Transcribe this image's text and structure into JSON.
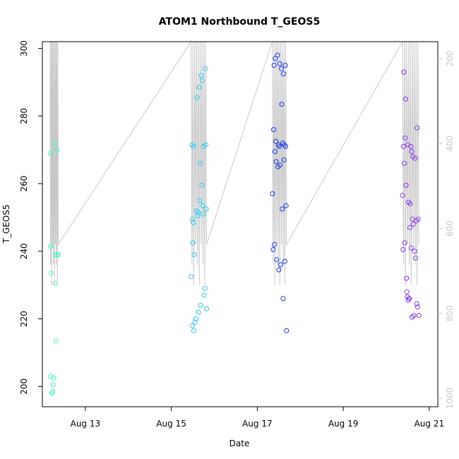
{
  "chart_data": {
    "type": "scatter",
    "title": "ATOM1 Northbound T_GEOS5",
    "xlabel": "Date",
    "ylabel": "T_GEOS5",
    "x_unit": "days in August",
    "xlim": [
      12.0,
      21.2
    ],
    "ylim": [
      194,
      302
    ],
    "x_ticks": [
      13,
      15,
      17,
      19,
      21
    ],
    "x_tick_labels": [
      "Aug 13",
      "Aug 15",
      "Aug 17",
      "Aug 19",
      "Aug 21"
    ],
    "y_ticks": [
      200,
      220,
      240,
      260,
      280,
      300
    ],
    "y_tick_labels": [
      "200",
      "220",
      "240",
      "260",
      "280",
      "300"
    ],
    "right_axis": {
      "ticks": [
        200,
        400,
        600,
        800,
        1000
      ],
      "tick_labels": [
        "200",
        "400",
        "600",
        "800",
        "1000"
      ],
      "range_top": 160,
      "range_bottom": 1020,
      "color": "#c8c8c8"
    },
    "grid": false,
    "legend": "none",
    "profile_color": "#c8c8c8",
    "series": [
      {
        "color": "#33ffcc",
        "points": [
          [
            12.18,
            269
          ],
          [
            12.19,
            241.5
          ],
          [
            12.2,
            233.5
          ],
          [
            12.19,
            203
          ],
          [
            12.22,
            198
          ],
          [
            12.24,
            198.5
          ],
          [
            12.25,
            200.5
          ],
          [
            12.26,
            202.5
          ],
          [
            12.28,
            272
          ],
          [
            12.3,
            239
          ],
          [
            12.3,
            230.5
          ],
          [
            12.33,
            270
          ],
          [
            12.31,
            213.5
          ],
          [
            12.34,
            239
          ],
          [
            12.37,
            239
          ]
        ]
      },
      {
        "color": "#22ccff",
        "points": [
          [
            15.46,
            232.5
          ],
          [
            15.48,
            271.5
          ],
          [
            15.49,
            249.5
          ],
          [
            15.5,
            242.5
          ],
          [
            15.51,
            248.5
          ],
          [
            15.52,
            271
          ],
          [
            15.49,
            218
          ],
          [
            15.52,
            216.5
          ],
          [
            15.53,
            239
          ],
          [
            15.55,
            219
          ],
          [
            15.57,
            220
          ],
          [
            15.58,
            252
          ],
          [
            15.6,
            285.5
          ],
          [
            15.61,
            250.5
          ],
          [
            15.62,
            251.5
          ],
          [
            15.63,
            222
          ],
          [
            15.65,
            288.5
          ],
          [
            15.66,
            255
          ],
          [
            15.67,
            266
          ],
          [
            15.68,
            224
          ],
          [
            15.7,
            292
          ],
          [
            15.71,
            259.5
          ],
          [
            15.72,
            290.5
          ],
          [
            15.73,
            253.5
          ],
          [
            15.74,
            251
          ],
          [
            15.75,
            271
          ],
          [
            15.76,
            227
          ],
          [
            15.78,
            229
          ],
          [
            15.79,
            294
          ],
          [
            15.8,
            271.5
          ],
          [
            15.81,
            252.5
          ],
          [
            15.82,
            223
          ]
        ]
      },
      {
        "color": "#1133ff",
        "points": [
          [
            17.35,
            257
          ],
          [
            17.37,
            240.5
          ],
          [
            17.38,
            276
          ],
          [
            17.39,
            295
          ],
          [
            17.4,
            242
          ],
          [
            17.41,
            269.5
          ],
          [
            17.42,
            297
          ],
          [
            17.43,
            272.5
          ],
          [
            17.44,
            266.5
          ],
          [
            17.45,
            237.5
          ],
          [
            17.47,
            298
          ],
          [
            17.48,
            265
          ],
          [
            17.49,
            271.5
          ],
          [
            17.5,
            234.5
          ],
          [
            17.51,
            271
          ],
          [
            17.52,
            295.5
          ],
          [
            17.53,
            265.5
          ],
          [
            17.54,
            236
          ],
          [
            17.56,
            294
          ],
          [
            17.57,
            283.5
          ],
          [
            17.58,
            252.5
          ],
          [
            17.59,
            272
          ],
          [
            17.6,
            226
          ],
          [
            17.61,
            292.5
          ],
          [
            17.62,
            267
          ],
          [
            17.63,
            271.5
          ],
          [
            17.64,
            237
          ],
          [
            17.65,
            295
          ],
          [
            17.66,
            271
          ],
          [
            17.67,
            253.5
          ],
          [
            17.68,
            216.5
          ]
        ]
      },
      {
        "color": "#8833ff",
        "points": [
          [
            20.38,
            256.5
          ],
          [
            20.39,
            240.5
          ],
          [
            20.4,
            271
          ],
          [
            20.41,
            293
          ],
          [
            20.42,
            266
          ],
          [
            20.43,
            242.5
          ],
          [
            20.44,
            273.5
          ],
          [
            20.45,
            285
          ],
          [
            20.46,
            259.5
          ],
          [
            20.47,
            232
          ],
          [
            20.48,
            228
          ],
          [
            20.49,
            226.5
          ],
          [
            20.5,
            271.5
          ],
          [
            20.51,
            225.5
          ],
          [
            20.52,
            254.5
          ],
          [
            20.53,
            226
          ],
          [
            20.54,
            226
          ],
          [
            20.55,
            247
          ],
          [
            20.56,
            254
          ],
          [
            20.57,
            271
          ],
          [
            20.58,
            241
          ],
          [
            20.59,
            269.5
          ],
          [
            20.6,
            220.5
          ],
          [
            20.61,
            249.5
          ],
          [
            20.62,
            268
          ],
          [
            20.63,
            248
          ],
          [
            20.64,
            221
          ],
          [
            20.66,
            240
          ],
          [
            20.67,
            267.5
          ],
          [
            20.68,
            238
          ],
          [
            20.7,
            249
          ],
          [
            20.71,
            224.5
          ],
          [
            20.72,
            276.5
          ],
          [
            20.73,
            223.5
          ],
          [
            20.74,
            249.5
          ],
          [
            20.76,
            221
          ]
        ]
      }
    ]
  }
}
